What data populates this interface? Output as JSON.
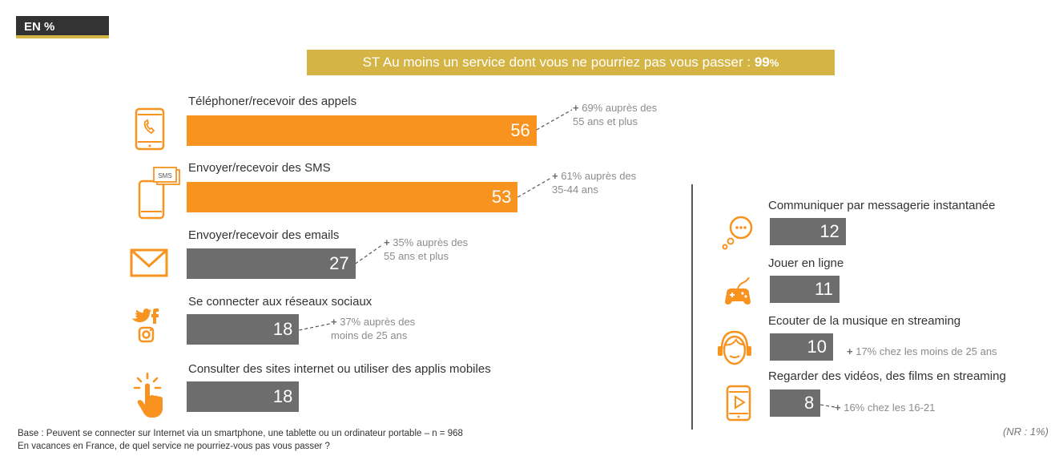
{
  "badge": "EN %",
  "headline": {
    "prefix": "ST Au moins un service dont vous ne pourriez pas vous passer : ",
    "value": "99",
    "unit": "%"
  },
  "chart_data": {
    "type": "bar",
    "title": "ST Au moins un service dont vous ne pourriez pas vous passer : 99%",
    "unit": "%",
    "series": [
      {
        "category": "Téléphoner/recevoir des appels",
        "value": 56,
        "highlight": true,
        "note_plus": "+",
        "note": "69% auprès des\n55 ans et plus"
      },
      {
        "category": "Envoyer/recevoir des SMS",
        "value": 53,
        "highlight": true,
        "note_plus": "+",
        "note": "61% auprès des\n35-44 ans"
      },
      {
        "category": "Envoyer/recevoir des emails",
        "value": 27,
        "highlight": false,
        "note_plus": "+",
        "note": "35% auprès des\n55 ans et plus"
      },
      {
        "category": "Se connecter aux réseaux sociaux",
        "value": 18,
        "highlight": false,
        "note_plus": "+",
        "note": "37% auprès des\nmoins de 25 ans"
      },
      {
        "category": "Consulter des sites internet ou utiliser des applis mobiles",
        "value": 18,
        "highlight": false,
        "note_plus": "",
        "note": ""
      },
      {
        "category": "Communiquer par messagerie instantanée",
        "value": 12,
        "highlight": false,
        "note_plus": "",
        "note": ""
      },
      {
        "category": "Jouer en ligne",
        "value": 11,
        "highlight": false,
        "note_plus": "",
        "note": ""
      },
      {
        "category": "Ecouter de la musique en streaming",
        "value": 10,
        "highlight": false,
        "note_plus": "+",
        "note": "17% chez les moins de 25 ans"
      },
      {
        "category": "Regarder des vidéos, des films en streaming",
        "value": 8,
        "highlight": false,
        "note_plus": "+",
        "note": "16% chez les 16-21"
      }
    ],
    "colors": {
      "highlight": "#f7931e",
      "default": "#6d6d6d",
      "accent": "#d4b445"
    }
  },
  "icons": [
    "phone-icon",
    "sms-icon",
    "email-icon",
    "social-icon",
    "touch-icon",
    "chat-icon",
    "gamepad-icon",
    "headphones-icon",
    "video-icon"
  ],
  "footer": {
    "base": "Base : Peuvent se connecter sur Internet via un smartphone, une tablette ou un ordinateur portable – n = 968",
    "question": "En vacances en France, de quel service ne pourriez-vous pas vous passer ?"
  },
  "nr": "(NR : 1%)"
}
